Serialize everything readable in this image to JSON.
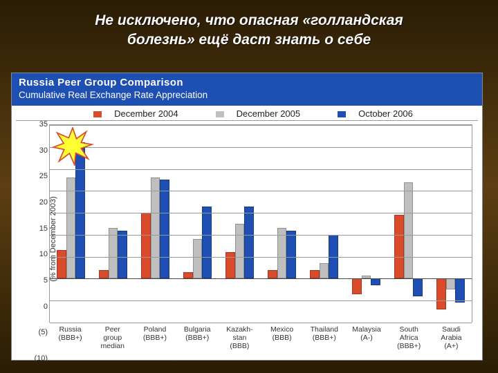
{
  "title_line1": "Не исключено, что опасная «голландская",
  "title_line2": "болезнь» ещё даст знать о себе",
  "panel": {
    "heading": "Russia Peer Group Comparison",
    "subheading": "Cumulative Real Exchange Rate Appreciation"
  },
  "chart": {
    "type": "bar",
    "ylabel": "(% from December 2003)",
    "ymin": -10,
    "ymax": 35,
    "ytick_step": 5,
    "series": [
      {
        "name": "December 2004",
        "color": "#d94b2b"
      },
      {
        "name": "December 2005",
        "color": "#bfbfbf"
      },
      {
        "name": "October 2006",
        "color": "#1f4fb2"
      }
    ],
    "categories": [
      {
        "label": "Russia\n(BBB+)",
        "values": [
          6.5,
          23,
          31
        ]
      },
      {
        "label": "Peer\ngroup\nmedian",
        "values": [
          2,
          11.5,
          11
        ]
      },
      {
        "label": "Poland\n(BBB+)",
        "values": [
          15,
          23,
          22.5
        ]
      },
      {
        "label": "Bulgaria\n(BBB+)",
        "values": [
          1.5,
          9,
          16.5
        ]
      },
      {
        "label": "Kazakh-\nstan\n(BBB)",
        "values": [
          6,
          12.5,
          16.5
        ]
      },
      {
        "label": "Mexico\n(BBB)",
        "values": [
          2,
          11.5,
          11
        ]
      },
      {
        "label": "Thailand\n(BBB+)",
        "values": [
          2,
          3.5,
          10
        ]
      },
      {
        "label": "Malaysia\n(A-)",
        "values": [
          -3.5,
          0.7,
          -1.5
        ]
      },
      {
        "label": "South\nAfrica\n(BBB+)",
        "values": [
          14.5,
          22,
          -4
        ]
      },
      {
        "label": "Saudi\nArabia\n(A+)",
        "values": [
          -7,
          -2.5,
          -5.5
        ]
      }
    ],
    "bar_width_ratio": 0.22,
    "group_gap_ratio": 0.1,
    "grid_color": "#999999",
    "background_color": "#ffffff",
    "label_fontsize": 11
  },
  "burst": {
    "fill": "#ffff33",
    "stroke": "#d94b2b"
  }
}
